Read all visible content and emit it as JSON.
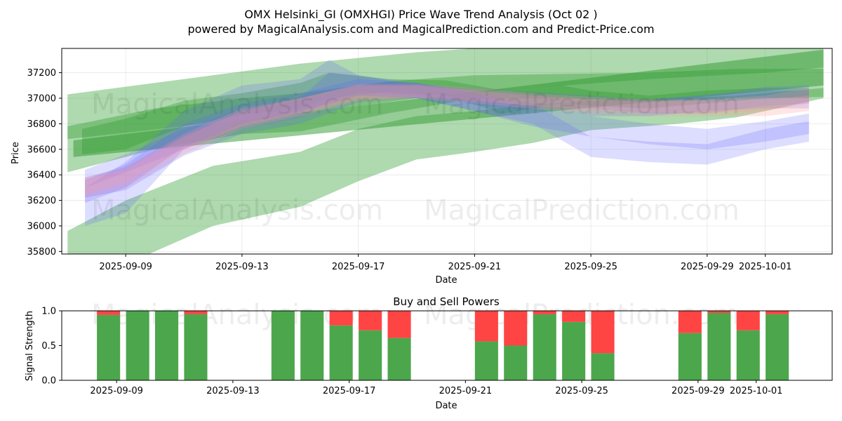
{
  "title_line1": "OMX Helsinki_GI (OMXHGI) Price Wave Trend Analysis (Oct 02 )",
  "title_line2": "powered by MagicalAnalysis.com and MagicalPrediction.com and Predict-Price.com",
  "watermarks": [
    "MagicalAnalysis.com",
    "MagicalPrediction.com"
  ],
  "colors": {
    "buy": "#4ca64c",
    "sell": "#ff4444",
    "green_band": "#2e9a2e",
    "blue_band": "#6666ff",
    "red_band": "#ff9999"
  },
  "chart_data": [
    {
      "type": "area",
      "name": "price-wave",
      "xlabel": "Date",
      "ylabel": "Price",
      "ylim": [
        35780,
        37390
      ],
      "xlim_day_offsets": [
        -2.2,
        24.3
      ],
      "x_start_date": "2025-09-09",
      "x_ticks": [
        {
          "day": 0,
          "label": "2025-09-09"
        },
        {
          "day": 4,
          "label": "2025-09-13"
        },
        {
          "day": 8,
          "label": "2025-09-17"
        },
        {
          "day": 12,
          "label": "2025-09-21"
        },
        {
          "day": 16,
          "label": "2025-09-25"
        },
        {
          "day": 20,
          "label": "2025-09-29"
        },
        {
          "day": 22,
          "label": "2025-10-01"
        }
      ],
      "y_ticks": [
        35800,
        36000,
        36200,
        36400,
        36600,
        36800,
        37000,
        37200
      ],
      "series": [
        {
          "name": "green-wide-upper",
          "color": "green",
          "opacity": 0.38,
          "x": [
            -2,
            2,
            6,
            10,
            14,
            18,
            22,
            24
          ],
          "lower": [
            36680,
            36780,
            36880,
            37000,
            37080,
            37150,
            37200,
            37240
          ],
          "upper": [
            37030,
            37150,
            37270,
            37360,
            37420,
            37460,
            37500,
            37520
          ]
        },
        {
          "name": "green-wide-lower",
          "color": "green",
          "opacity": 0.38,
          "x": [
            -2,
            0,
            3,
            6,
            8,
            10,
            12,
            14,
            16,
            19,
            21,
            23,
            24
          ],
          "lower": [
            35780,
            35700,
            36000,
            36150,
            36350,
            36520,
            36580,
            36650,
            36750,
            36800,
            36850,
            36950,
            37000
          ],
          "upper": [
            35960,
            36200,
            36470,
            36580,
            36760,
            36860,
            36900,
            36950,
            36980,
            37000,
            37020,
            37060,
            37080
          ]
        },
        {
          "name": "green-mid",
          "color": "green",
          "opacity": 0.38,
          "x": [
            -2,
            1,
            4,
            6,
            9,
            12,
            15,
            18,
            21,
            24
          ],
          "lower": [
            36420,
            36600,
            36720,
            36740,
            36880,
            37000,
            37000,
            36970,
            37000,
            37010
          ],
          "upper": [
            36780,
            36920,
            37000,
            37040,
            37130,
            37180,
            37190,
            37200,
            37230,
            37230
          ]
        },
        {
          "name": "green-trend",
          "color": "green",
          "opacity": 0.5,
          "x": [
            -1.8,
            24
          ],
          "lower": [
            36540,
            37100
          ],
          "upper": [
            36670,
            37380
          ]
        },
        {
          "name": "green-wave-a",
          "color": "green",
          "opacity": 0.35,
          "x": [
            -1.5,
            0,
            2,
            4,
            6,
            7,
            9,
            11,
            13,
            15,
            16,
            18,
            20,
            22,
            23.5
          ],
          "lower": [
            36560,
            36600,
            36780,
            36870,
            36920,
            37000,
            37050,
            37020,
            36880,
            36960,
            36940,
            36920,
            36960,
            37000,
            37000
          ],
          "upper": [
            36760,
            36840,
            36980,
            37040,
            37120,
            37200,
            37150,
            37140,
            37060,
            37100,
            37060,
            37020,
            37060,
            37080,
            37080
          ]
        },
        {
          "name": "blue-wave-a",
          "color": "blue",
          "opacity": 0.22,
          "x": [
            -1.4,
            0,
            2,
            4,
            6,
            7,
            8,
            10,
            12,
            14,
            16,
            18,
            20,
            22,
            23.5
          ],
          "lower": [
            36000,
            36100,
            36600,
            36800,
            36900,
            36950,
            37020,
            37000,
            36980,
            36920,
            36920,
            36880,
            36880,
            36940,
            36960
          ],
          "upper": [
            36300,
            36500,
            36900,
            37100,
            37150,
            37300,
            37180,
            37100,
            37080,
            37050,
            37020,
            36990,
            37020,
            37090,
            37100
          ]
        },
        {
          "name": "blue-wave-b",
          "color": "blue",
          "opacity": 0.22,
          "x": [
            -1.4,
            0,
            2,
            4,
            6,
            8,
            10,
            12,
            14,
            16,
            18,
            20,
            22,
            23.5
          ],
          "lower": [
            36220,
            36280,
            36550,
            36720,
            36800,
            36970,
            37000,
            36900,
            36780,
            36700,
            36640,
            36600,
            36660,
            36720
          ],
          "upper": [
            36380,
            36460,
            36720,
            36900,
            36980,
            37100,
            37120,
            37040,
            36900,
            36860,
            36800,
            36760,
            36820,
            36880
          ]
        },
        {
          "name": "blue-wave-c",
          "color": "blue",
          "opacity": 0.22,
          "x": [
            -1.4,
            0,
            2,
            4,
            6,
            8,
            10,
            12,
            14,
            16,
            18,
            20,
            22,
            23.5
          ],
          "lower": [
            36180,
            36300,
            36620,
            36800,
            36900,
            37020,
            37000,
            36900,
            36800,
            36540,
            36500,
            36480,
            36600,
            36660
          ],
          "upper": [
            36360,
            36480,
            36800,
            36960,
            37040,
            37150,
            37120,
            37040,
            36960,
            36700,
            36660,
            36640,
            36760,
            36820
          ]
        },
        {
          "name": "blue-wave-d",
          "color": "blue",
          "opacity": 0.22,
          "x": [
            -1.4,
            0,
            2,
            4,
            6,
            7,
            8,
            10,
            12,
            14,
            16,
            18,
            20,
            22,
            23.5
          ],
          "lower": [
            36300,
            36420,
            36600,
            36760,
            36850,
            36980,
            37050,
            37020,
            36950,
            36900,
            36860,
            36860,
            36900,
            36920,
            36920
          ],
          "upper": [
            36440,
            36560,
            36760,
            36920,
            37000,
            37200,
            37180,
            37120,
            37060,
            37020,
            36980,
            36990,
            37030,
            37060,
            37060
          ]
        },
        {
          "name": "red-wave-a",
          "color": "red",
          "opacity": 0.25,
          "x": [
            -1.4,
            0,
            2,
            4,
            6,
            8,
            10,
            12,
            14,
            16,
            18,
            20,
            22,
            23.5
          ],
          "lower": [
            36220,
            36300,
            36560,
            36760,
            36860,
            36980,
            37000,
            36960,
            36920,
            36880,
            36860,
            36860,
            36860,
            36900
          ],
          "upper": [
            36360,
            36440,
            36700,
            36900,
            37000,
            37100,
            37100,
            37060,
            37020,
            36990,
            36980,
            36980,
            36990,
            37020
          ]
        },
        {
          "name": "red-wave-b",
          "color": "red",
          "opacity": 0.25,
          "x": [
            -1.4,
            0,
            2,
            4,
            6,
            8,
            10,
            12,
            14,
            16,
            18,
            20,
            22,
            23.5
          ],
          "lower": [
            36250,
            36340,
            36600,
            36780,
            36880,
            36990,
            37010,
            36980,
            36940,
            36910,
            36890,
            36880,
            36900,
            36960
          ],
          "upper": [
            36380,
            36460,
            36720,
            36920,
            37000,
            37110,
            37110,
            37080,
            37040,
            37010,
            36990,
            36990,
            37020,
            37080
          ]
        }
      ]
    },
    {
      "type": "bar",
      "name": "buy-sell-powers",
      "title": "Buy and Sell Powers",
      "xlabel": "Date",
      "ylabel": "Signal Strength",
      "ylim": [
        0,
        1
      ],
      "y_ticks": [
        0.0,
        0.5,
        1.0
      ],
      "y_tick_labels": [
        "0.0",
        "0.5",
        "1.0"
      ],
      "xlim_day_offsets": [
        -2.2,
        24.3
      ],
      "x_ticks": [
        {
          "day": 0,
          "label": "2025-09-09"
        },
        {
          "day": 4,
          "label": "2025-09-13"
        },
        {
          "day": 8,
          "label": "2025-09-17"
        },
        {
          "day": 12,
          "label": "2025-09-21"
        },
        {
          "day": 16,
          "label": "2025-09-25"
        },
        {
          "day": 20,
          "label": "2025-09-29"
        },
        {
          "day": 22,
          "label": "2025-10-01"
        }
      ],
      "categories": [
        "2025-09-08",
        "2025-09-09",
        "2025-09-10",
        "2025-09-11",
        "2025-09-14",
        "2025-09-15",
        "2025-09-16",
        "2025-09-17",
        "2025-09-18",
        "2025-09-21",
        "2025-09-22",
        "2025-09-23",
        "2025-09-24",
        "2025-09-25",
        "2025-09-28",
        "2025-09-29",
        "2025-09-30",
        "2025-10-01"
      ],
      "day_offsets": [
        -1,
        0,
        1,
        2,
        5,
        6,
        7,
        8,
        9,
        12,
        13,
        14,
        15,
        16,
        19,
        20,
        21,
        22
      ],
      "series": [
        {
          "name": "Buy",
          "values": [
            0.94,
            1.0,
            1.0,
            0.95,
            1.0,
            1.0,
            0.79,
            0.72,
            0.61,
            0.56,
            0.5,
            0.95,
            0.84,
            0.39,
            0.68,
            0.97,
            0.72,
            0.95
          ]
        },
        {
          "name": "Sell",
          "values": [
            0.06,
            0.0,
            0.0,
            0.05,
            0.0,
            0.0,
            0.21,
            0.28,
            0.39,
            0.44,
            0.5,
            0.05,
            0.16,
            0.61,
            0.32,
            0.03,
            0.28,
            0.05
          ]
        }
      ]
    }
  ]
}
